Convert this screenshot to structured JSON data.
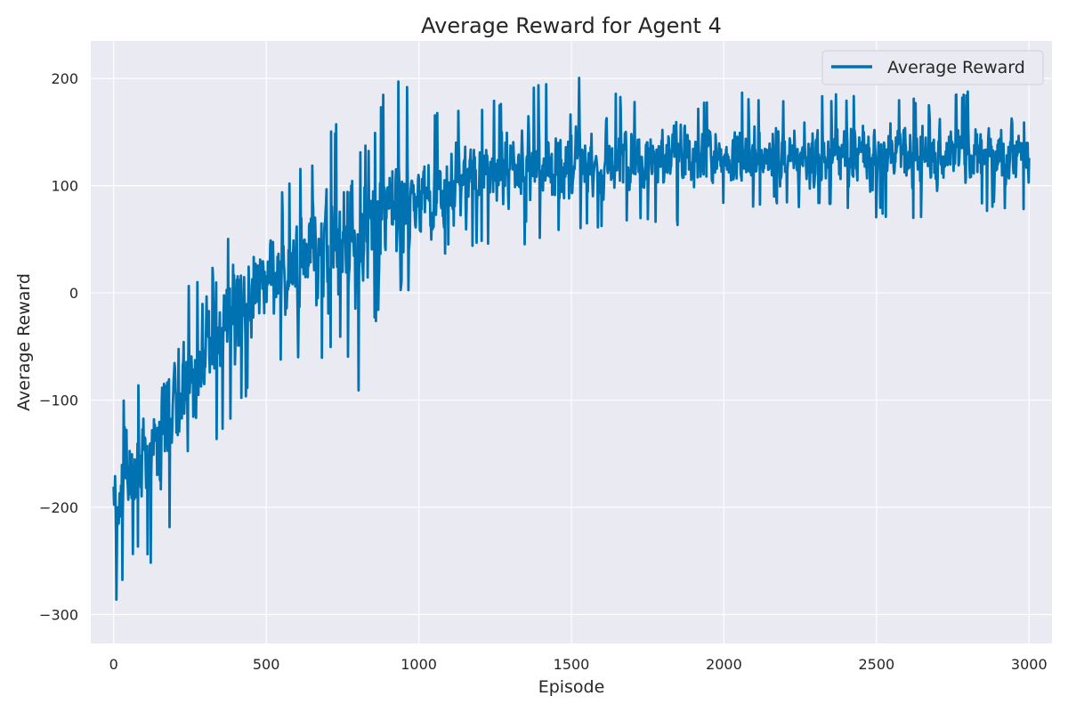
{
  "chart_data": {
    "type": "line",
    "title": "Average Reward for Agent 4",
    "xlabel": "Episode",
    "ylabel": "Average Reward",
    "xlim": [
      -75,
      3075
    ],
    "ylim": [
      -327,
      235
    ],
    "xticks": [
      0,
      500,
      1000,
      1500,
      2000,
      2500,
      3000
    ],
    "xtick_labels": [
      "0",
      "500",
      "1000",
      "1500",
      "2000",
      "2500",
      "3000"
    ],
    "yticks": [
      -300,
      -200,
      -100,
      0,
      100,
      200
    ],
    "ytick_labels": [
      "−300",
      "−200",
      "−100",
      "0",
      "100",
      "200"
    ],
    "grid": true,
    "legend_position": "top-right",
    "colors": {
      "line": "#0072b2",
      "plot_background": "#eaeaf2",
      "grid": "#ffffff"
    },
    "series": [
      {
        "name": "Average Reward",
        "description_points": "Noisy per-episode reward; upper/lower envelope of the plotted trace",
        "x": [
          0,
          50,
          100,
          150,
          200,
          250,
          300,
          350,
          400,
          450,
          500,
          550,
          600,
          650,
          700,
          750,
          800,
          850,
          900,
          950,
          1000,
          1100,
          1200,
          1300,
          1400,
          1500,
          1600,
          1700,
          1800,
          1900,
          2000,
          2100,
          2200,
          2300,
          2400,
          2500,
          2600,
          2700,
          2800,
          2900,
          3000
        ],
        "upper": [
          -125,
          -80,
          -90,
          -60,
          -20,
          10,
          20,
          45,
          70,
          60,
          80,
          100,
          115,
          120,
          150,
          165,
          130,
          145,
          205,
          200,
          170,
          180,
          175,
          185,
          195,
          205,
          190,
          185,
          180,
          180,
          190,
          185,
          185,
          190,
          185,
          185,
          185,
          185,
          190,
          185,
          160
        ],
        "lower": [
          -295,
          -250,
          -240,
          -280,
          -195,
          -150,
          -150,
          -135,
          -110,
          -90,
          -75,
          -70,
          -60,
          -95,
          -55,
          -40,
          -100,
          -30,
          -15,
          -5,
          5,
          40,
          45,
          40,
          50,
          55,
          60,
          60,
          65,
          60,
          75,
          80,
          80,
          80,
          70,
          70,
          65,
          70,
          70,
          80,
          70
        ],
        "mean": [
          -210,
          -170,
          -150,
          -130,
          -110,
          -80,
          -55,
          -35,
          -15,
          -5,
          10,
          20,
          30,
          35,
          40,
          45,
          50,
          60,
          70,
          80,
          90,
          105,
          110,
          115,
          118,
          120,
          122,
          123,
          124,
          125,
          126,
          127,
          128,
          128,
          128,
          129,
          129,
          129,
          130,
          130,
          125
        ]
      }
    ]
  }
}
